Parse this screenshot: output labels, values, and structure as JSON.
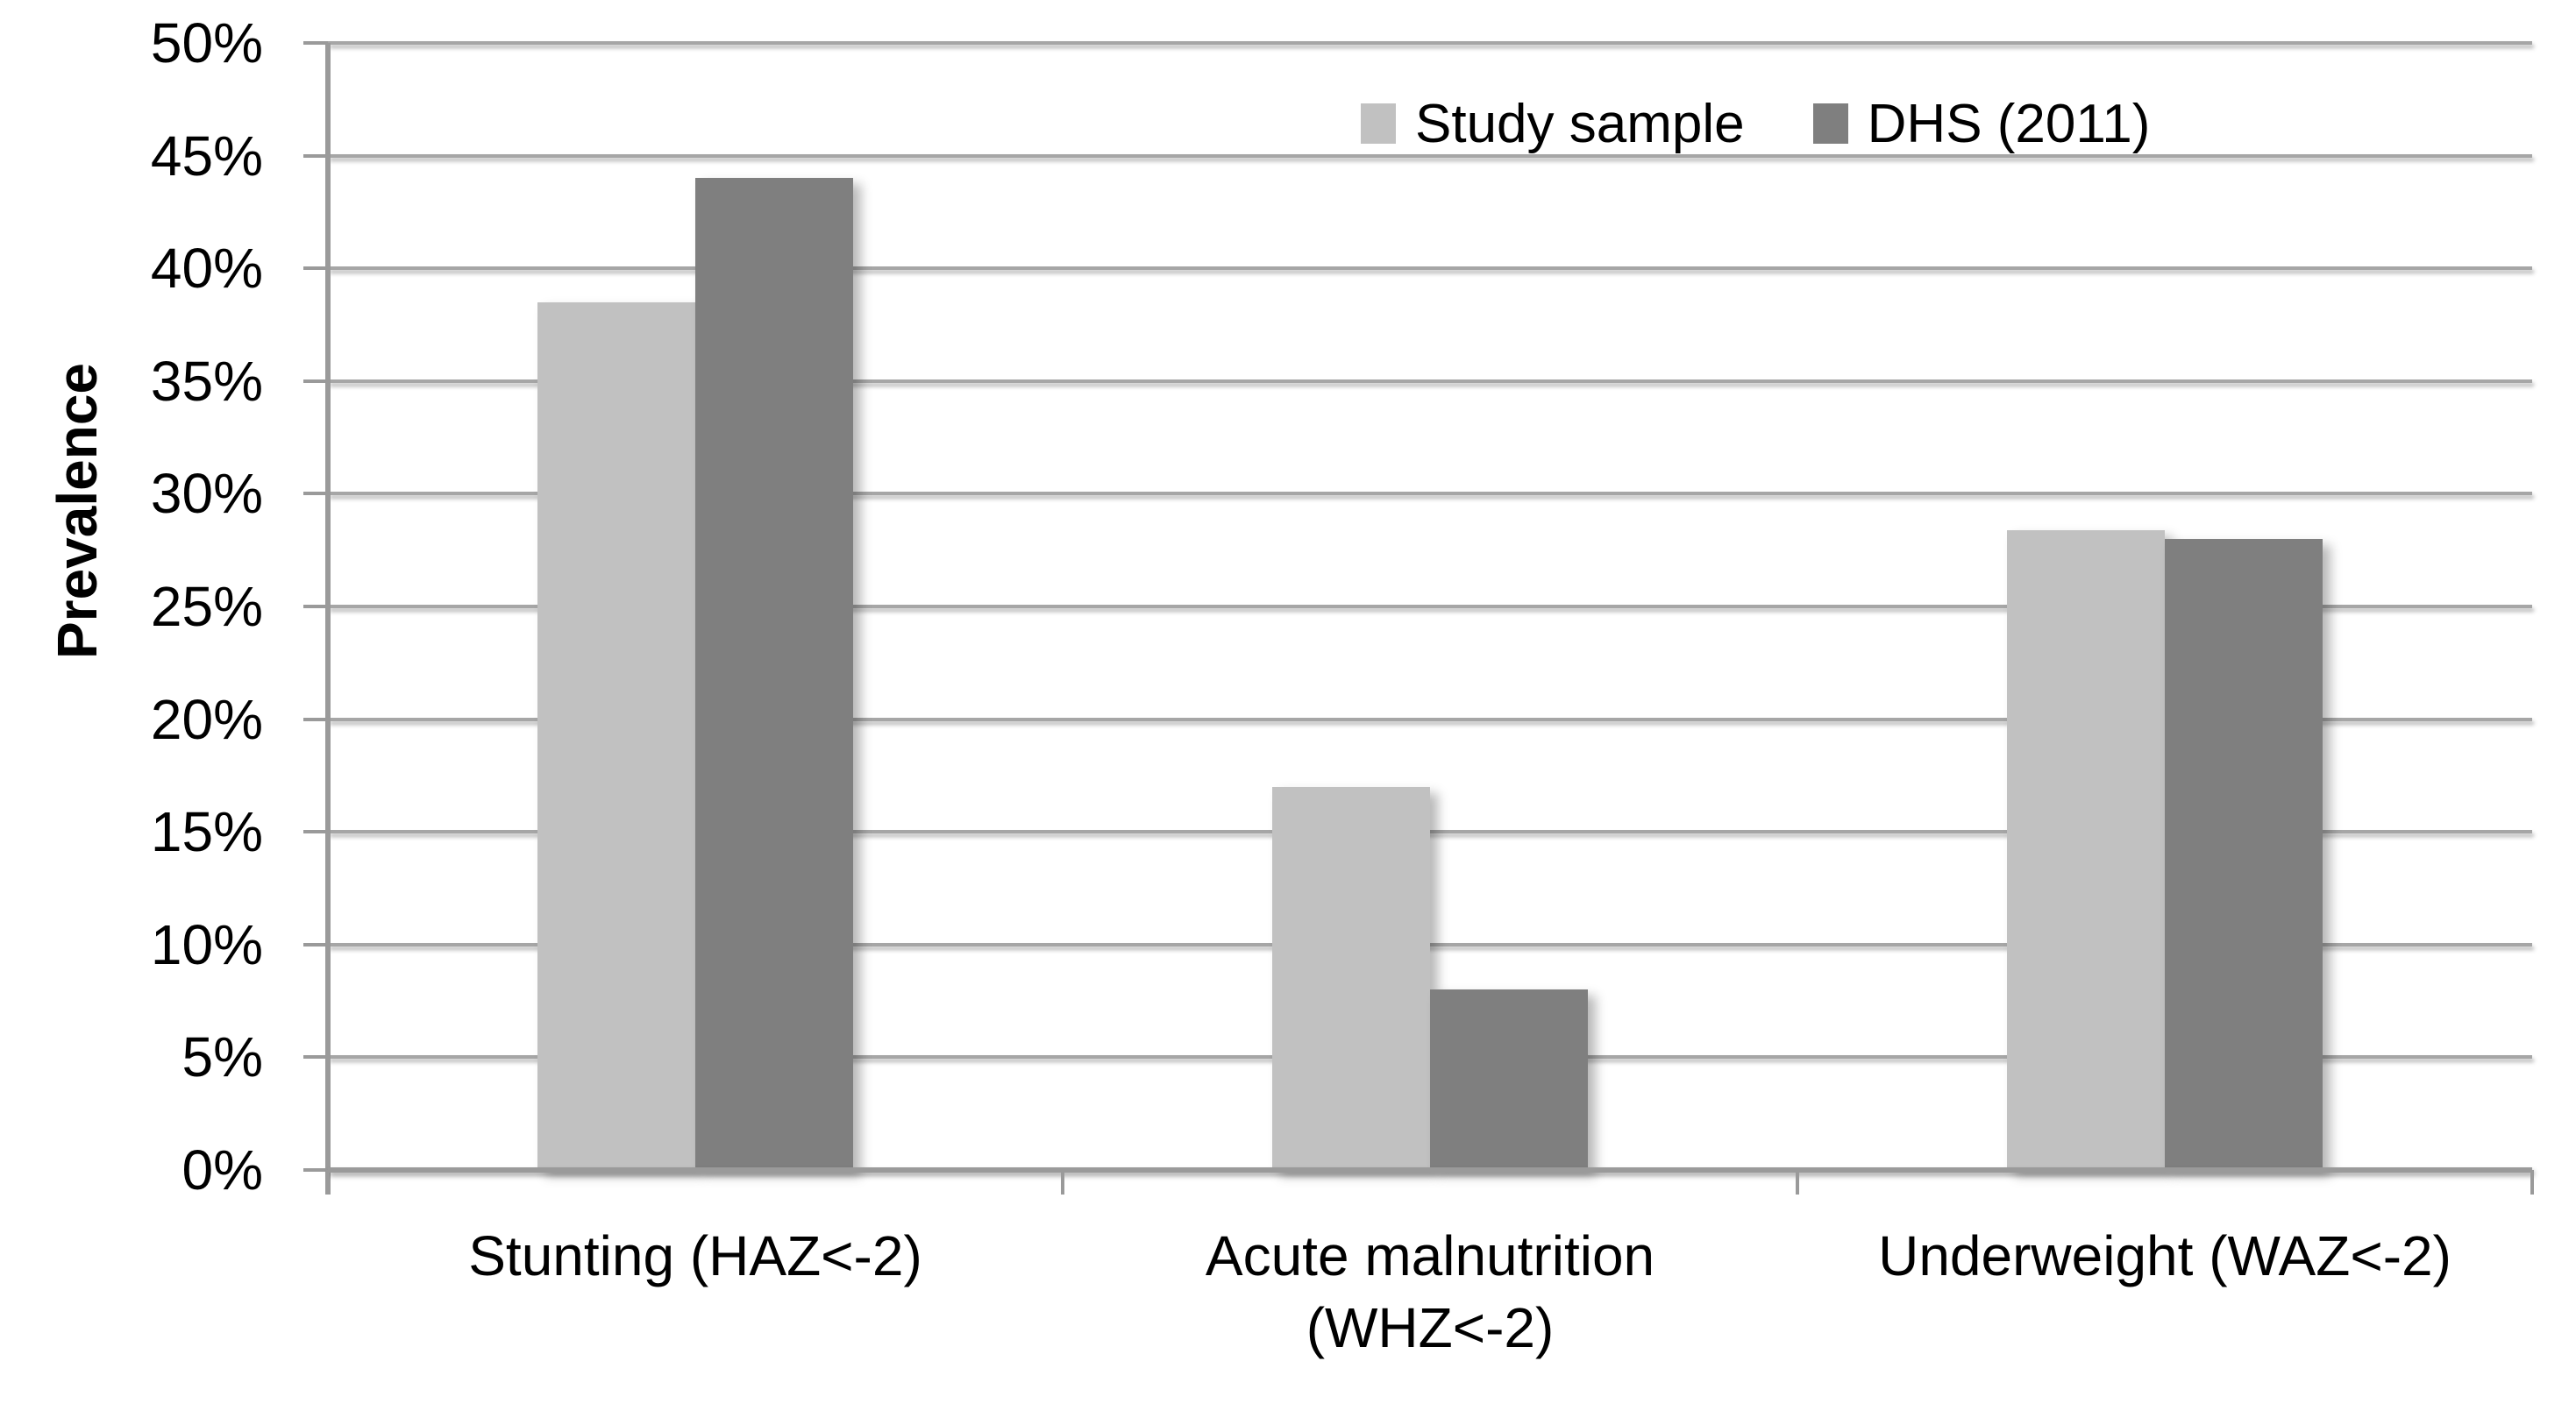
{
  "chart_data": {
    "type": "bar",
    "title": "",
    "xlabel": "",
    "ylabel": "Prevalence",
    "ylim": [
      0,
      50
    ],
    "grid": true,
    "legend_position": "top-right-inside",
    "background_color": "#ffffff",
    "gridline_color": "#a6a6a6",
    "axis_color": "#9a9a9a",
    "text_color": "#000000",
    "y_tick_values": [
      0,
      5,
      10,
      15,
      20,
      25,
      30,
      35,
      40,
      45,
      50
    ],
    "y_tick_labels": [
      "0%",
      "5%",
      "10%",
      "15%",
      "20%",
      "25%",
      "30%",
      "35%",
      "40%",
      "45%",
      "50%"
    ],
    "categories": [
      "Stunting (HAZ<-2)",
      "Acute malnutrition\n(WHZ<-2)",
      "Underweight (WAZ<-2)"
    ],
    "series": [
      {
        "name": "Study sample",
        "color": "#c1c1c1",
        "values": [
          38.5,
          17,
          28.4
        ]
      },
      {
        "name": "DHS (2011)",
        "color": "#7f7f7f",
        "values": [
          44,
          8,
          28
        ]
      }
    ]
  }
}
